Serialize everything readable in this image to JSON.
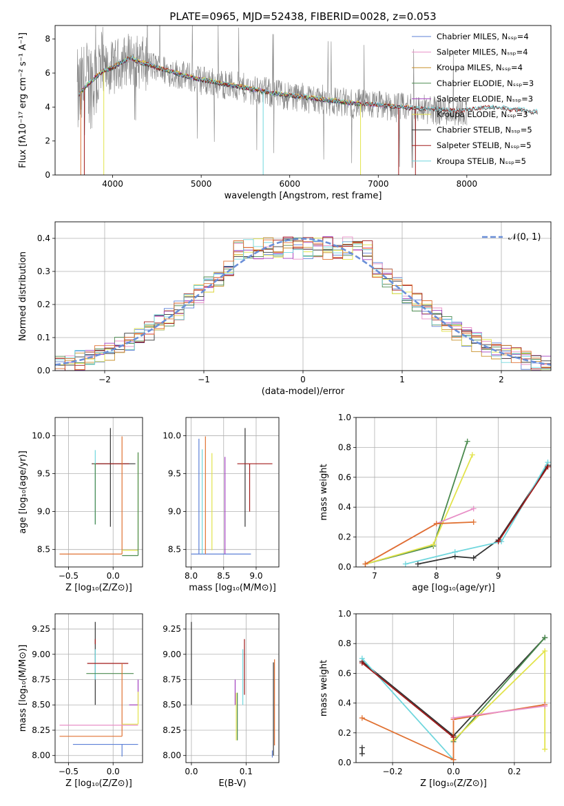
{
  "colors": {
    "chabrier_miles": "#5b7fd6",
    "salpeter_miles": "#e88fc7",
    "kroupa_miles": "#c8902a",
    "chabrier_elodie": "#4a8a4e",
    "salpeter_elodie": "#a23fbf",
    "kroupa_elodie": "#e2e34a",
    "chabrier_stelib": "#333333",
    "salpeter_stelib": "#a01818",
    "kroupa_stelib": "#6fd6dd",
    "data": "#808080",
    "normal": "#6a8fd8",
    "orange": "#e07030"
  },
  "chart_data": [
    {
      "id": "spectrum",
      "type": "line",
      "title": "PLATE=0965, MJD=52438, FIBERID=0028, z=0.053",
      "xlabel": "wavelength [Angstrom, rest frame]",
      "ylabel": "Flux [fλ10⁻¹⁷ erg cm⁻² s⁻¹ A⁻¹]",
      "xlim": [
        3350,
        8950
      ],
      "ylim": [
        0,
        8.8
      ],
      "xticks": [
        "4000",
        "5000",
        "6000",
        "7000",
        "8000"
      ],
      "yticks": [
        "0",
        "2",
        "4",
        "6",
        "8"
      ],
      "legend_position": "top-right",
      "grid": false,
      "legend": [
        {
          "label": "Chabrier MILES, Nₛₛₚ=4",
          "color": "chabrier_miles"
        },
        {
          "label": "Salpeter MILES, Nₛₛₚ=4",
          "color": "salpeter_miles"
        },
        {
          "label": "Kroupa MILES, Nₛₛₚ=4",
          "color": "kroupa_miles"
        },
        {
          "label": "Chabrier ELODIE, Nₛₛₚ=3",
          "color": "chabrier_elodie"
        },
        {
          "label": "Salpeter ELODIE, Nₛₛₚ=3",
          "color": "salpeter_elodie"
        },
        {
          "label": "Kroupa ELODIE, Nₛₛₚ=3",
          "color": "kroupa_elodie"
        },
        {
          "label": "Chabrier STELIB, Nₛₛₚ=5",
          "color": "chabrier_stelib"
        },
        {
          "label": "Salpeter STELIB, Nₛₛₚ=5",
          "color": "salpeter_stelib"
        },
        {
          "label": "Kroupa STELIB, Nₛₛₚ=5",
          "color": "kroupa_stelib"
        }
      ],
      "continuum": [
        [
          3600,
          4.6
        ],
        [
          3700,
          5.2
        ],
        [
          3800,
          5.7
        ],
        [
          3900,
          6.1
        ],
        [
          4000,
          6.3
        ],
        [
          4100,
          6.6
        ],
        [
          4200,
          6.9
        ],
        [
          4300,
          6.6
        ],
        [
          4400,
          6.5
        ],
        [
          4500,
          6.3
        ],
        [
          4700,
          6.0
        ],
        [
          4900,
          5.7
        ],
        [
          5100,
          5.5
        ],
        [
          5300,
          5.3
        ],
        [
          5500,
          5.1
        ],
        [
          5800,
          4.8
        ],
        [
          6100,
          4.6
        ],
        [
          6400,
          4.4
        ],
        [
          6700,
          4.2
        ],
        [
          7000,
          4.1
        ],
        [
          7300,
          3.95
        ],
        [
          7600,
          3.85
        ],
        [
          7900,
          3.75
        ],
        [
          8200,
          3.95
        ],
        [
          8400,
          3.95
        ],
        [
          8500,
          3.8
        ],
        [
          8600,
          3.85
        ],
        [
          8700,
          3.7
        ]
      ],
      "data_xrange": [
        3600,
        8000
      ],
      "model_xrange": [
        3600,
        8800
      ]
    },
    {
      "id": "residuals",
      "type": "step",
      "xlabel": "(data-model)/error",
      "ylabel": "Normed distribution",
      "xlim": [
        -2.5,
        2.5
      ],
      "ylim": [
        0,
        0.45
      ],
      "xticks": [
        "−2",
        "−1",
        "0",
        "1",
        "2"
      ],
      "yticks": [
        "0.0",
        "0.1",
        "0.2",
        "0.3",
        "0.4"
      ],
      "grid": true,
      "legend": [
        {
          "label": "𝒩(0, 1)",
          "style": "dashed",
          "color": "normal"
        }
      ],
      "legend_position": "top-right"
    },
    {
      "id": "age-vs-Z",
      "type": "scatter",
      "xlabel": "Z [log₁₀(Z/Z⊙)]",
      "ylabel": "age  [log₁₀(age/yr)]",
      "xlim": [
        -0.65,
        0.33
      ],
      "ylim": [
        8.27,
        10.24
      ],
      "xticks": [
        "−0.5",
        "0.0"
      ],
      "yticks": [
        "8.5",
        "9.0",
        "9.5",
        "10.0"
      ],
      "grid": true,
      "errorbars": [
        {
          "c": "chabrier_stelib",
          "x": -0.03,
          "xerr": [
            0.21,
            0.28
          ],
          "y": 9.63,
          "yerr": [
            0.83,
            0.47
          ]
        },
        {
          "c": "salpeter_stelib",
          "x": -0.04,
          "xerr": [
            0.19,
            0.22
          ],
          "y": 9.63,
          "yerr": [
            0.0,
            0.0
          ]
        },
        {
          "c": "kroupa_stelib",
          "x": -0.2,
          "xerr": [
            0.02,
            0.0
          ],
          "y": 9.63,
          "yerr": [
            0.8,
            0.18
          ]
        },
        {
          "c": "chabrier_elodie",
          "x": -0.2,
          "xerr": [
            0.02,
            0.0
          ],
          "y": 9.63,
          "yerr": [
            0.8,
            0.0
          ]
        },
        {
          "c": "orange",
          "x": 0.1,
          "xerr": [
            0.7,
            0.0
          ],
          "y": 8.44,
          "yerr": [
            0.0,
            1.55
          ]
        },
        {
          "c": "kroupa_elodie",
          "x": 0.28,
          "xerr": [
            0.18,
            0.0
          ],
          "y": 8.49,
          "yerr": [
            0.0,
            1.28
          ]
        },
        {
          "c": "chabrier_elodie",
          "x": 0.28,
          "xerr": [
            0.18,
            0.0
          ],
          "y": 8.42,
          "yerr": [
            0.0,
            1.36
          ]
        }
      ]
    },
    {
      "id": "age-vs-mass",
      "type": "scatter",
      "xlabel": "mass [log₁₀(M/M⊙)]",
      "ylabel": "",
      "xlim": [
        7.92,
        9.35
      ],
      "ylim": [
        8.27,
        10.24
      ],
      "xticks": [
        "8.0",
        "8.5",
        "9.0"
      ],
      "yticks": [
        "8.5",
        "9.0",
        "9.5",
        "10.0"
      ],
      "grid": true,
      "errorbars": [
        {
          "c": "chabrier_miles",
          "x": 8.12,
          "xerr": [
            0.12,
            0.8
          ],
          "y": 8.44,
          "yerr": [
            0.0,
            1.52
          ]
        },
        {
          "c": "kroupa_stelib",
          "x": 8.17,
          "xerr": [
            0.0,
            0.0
          ],
          "y": 8.44,
          "yerr": [
            0.0,
            1.38
          ]
        },
        {
          "c": "orange",
          "x": 8.22,
          "xerr": [
            0.0,
            0.0
          ],
          "y": 8.44,
          "yerr": [
            0.0,
            1.55
          ]
        },
        {
          "c": "kroupa_elodie",
          "x": 8.32,
          "xerr": [
            0.0,
            0.0
          ],
          "y": 8.49,
          "yerr": [
            0.0,
            1.28
          ]
        },
        {
          "c": "salpeter_elodie",
          "x": 8.52,
          "xerr": [
            0.0,
            0.0
          ],
          "y": 8.44,
          "yerr": [
            0.0,
            1.28
          ]
        },
        {
          "c": "chabrier_stelib",
          "x": 8.83,
          "xerr": [
            0.0,
            0.0
          ],
          "y": 9.63,
          "yerr": [
            0.83,
            0.47
          ]
        },
        {
          "c": "salpeter_stelib",
          "x": 8.9,
          "xerr": [
            0.19,
            0.35
          ],
          "y": 9.63,
          "yerr": [
            0.63,
            0.0
          ]
        }
      ]
    },
    {
      "id": "massweight-vs-age",
      "type": "line",
      "xlabel": "age  [log₁₀(age/yr)]",
      "ylabel": "mass weight",
      "xlim": [
        6.7,
        9.85
      ],
      "ylim": [
        0,
        1.0
      ],
      "xticks": [
        "7",
        "8",
        "9"
      ],
      "yticks": [
        "0.0",
        "0.2",
        "0.4",
        "0.6",
        "0.8",
        "1.0"
      ],
      "grid": true,
      "series": [
        {
          "c": "chabrier_elodie",
          "x": [
            6.85,
            7.95,
            8.5
          ],
          "y": [
            0.02,
            0.14,
            0.84
          ]
        },
        {
          "c": "kroupa_elodie",
          "x": [
            6.85,
            7.95,
            8.58
          ],
          "y": [
            0.02,
            0.15,
            0.75
          ]
        },
        {
          "c": "salpeter_miles",
          "x": [
            6.85,
            8.0,
            8.6
          ],
          "y": [
            0.02,
            0.29,
            0.39
          ]
        },
        {
          "c": "orange",
          "x": [
            6.85,
            8.0,
            8.6
          ],
          "y": [
            0.02,
            0.29,
            0.3
          ]
        },
        {
          "c": "chabrier_stelib",
          "x": [
            7.7,
            8.3,
            8.6,
            9.0,
            9.8
          ],
          "y": [
            0.02,
            0.07,
            0.06,
            0.18,
            0.68
          ]
        },
        {
          "c": "kroupa_stelib",
          "x": [
            7.5,
            8.3,
            9.05,
            9.8
          ],
          "y": [
            0.02,
            0.1,
            0.17,
            0.7
          ]
        },
        {
          "c": "salpeter_stelib",
          "x": [
            9.0,
            9.8
          ],
          "y": [
            0.17,
            0.67
          ]
        }
      ]
    },
    {
      "id": "mass-vs-Z",
      "type": "scatter",
      "xlabel": "Z [log₁₀(Z/Z⊙)]",
      "ylabel": "mass [log₁₀(M/M⊙)]",
      "xlim": [
        -0.65,
        0.33
      ],
      "ylim": [
        7.93,
        9.4
      ],
      "xticks": [
        "−0.5",
        "0.0"
      ],
      "yticks": [
        "8.00",
        "8.25",
        "8.50",
        "8.75",
        "9.00",
        "9.25"
      ],
      "grid": true,
      "errorbars": [
        {
          "c": "chabrier_stelib",
          "x": -0.2,
          "xerr": [
            0.0,
            0.0
          ],
          "y": 8.9,
          "yerr": [
            0.4,
            0.42
          ]
        },
        {
          "c": "salpeter_stelib",
          "x": -0.2,
          "xerr": [
            0.0,
            0.0
          ],
          "y": 9.1,
          "yerr": [
            0.0,
            0.05
          ]
        },
        {
          "c": "kroupa_stelib",
          "x": -0.2,
          "xerr": [
            0.0,
            0.0
          ],
          "y": 8.85,
          "yerr": [
            0.1,
            0.2
          ]
        },
        {
          "c": "salpeter_stelib",
          "x": -0.06,
          "xerr": [
            0.23,
            0.23
          ],
          "y": 8.91,
          "yerr": [
            0.0,
            0.0
          ]
        },
        {
          "c": "chabrier_elodie",
          "x": -0.03,
          "xerr": [
            0.27,
            0.26
          ],
          "y": 8.81,
          "yerr": [
            0.0,
            0.0
          ]
        },
        {
          "c": "orange",
          "x": 0.1,
          "xerr": [
            0.7,
            0.0
          ],
          "y": 8.19,
          "yerr": [
            0.0,
            0.72
          ]
        },
        {
          "c": "salpeter_miles",
          "x": 0.1,
          "xerr": [
            0.7,
            0.18
          ],
          "y": 8.3,
          "yerr": [
            0.0,
            0.0
          ]
        },
        {
          "c": "chabrier_miles",
          "x": 0.1,
          "xerr": [
            0.55,
            0.18
          ],
          "y": 8.11,
          "yerr": [
            0.12,
            0.0
          ]
        },
        {
          "c": "salpeter_elodie",
          "x": 0.28,
          "xerr": [
            0.1,
            0.0
          ],
          "y": 8.5,
          "yerr": [
            0.0,
            0.25
          ]
        },
        {
          "c": "kroupa_elodie",
          "x": 0.28,
          "xerr": [
            0.18,
            0.0
          ],
          "y": 8.31,
          "yerr": [
            0.0,
            0.32
          ]
        }
      ]
    },
    {
      "id": "mass-vs-EBV",
      "type": "scatter",
      "xlabel": "E(B-V)",
      "ylabel": "",
      "xlim": [
        -0.01,
        0.16
      ],
      "ylim": [
        7.93,
        9.4
      ],
      "xticks": [
        "0.0",
        "0.1"
      ],
      "yticks": [
        "8.00",
        "8.25",
        "8.50",
        "8.75",
        "9.00",
        "9.25"
      ],
      "grid": true,
      "errorbars": [
        {
          "c": "chabrier_stelib",
          "x": 0.0,
          "xerr": [
            0.0,
            0.0
          ],
          "y": 8.9,
          "yerr": [
            0.4,
            0.42
          ]
        },
        {
          "c": "salpeter_elodie",
          "x": 0.08,
          "xerr": [
            0.0,
            0.0
          ],
          "y": 8.5,
          "yerr": [
            0.0,
            0.25
          ]
        },
        {
          "c": "kroupa_elodie",
          "x": 0.082,
          "xerr": [
            0.0,
            0.0
          ],
          "y": 8.3,
          "yerr": [
            0.15,
            0.32
          ]
        },
        {
          "c": "chabrier_elodie",
          "x": 0.084,
          "xerr": [
            0.0,
            0.0
          ],
          "y": 8.4,
          "yerr": [
            0.25,
            0.22
          ]
        },
        {
          "c": "kroupa_stelib",
          "x": 0.094,
          "xerr": [
            0.0,
            0.0
          ],
          "y": 8.85,
          "yerr": [
            0.35,
            0.2
          ]
        },
        {
          "c": "salpeter_stelib",
          "x": 0.097,
          "xerr": [
            0.0,
            0.0
          ],
          "y": 8.9,
          "yerr": [
            0.3,
            0.25
          ]
        },
        {
          "c": "chabrier_stelib",
          "x": 0.15,
          "xerr": [
            0.0,
            0.0
          ],
          "y": 8.4,
          "yerr": [
            0.4,
            0.52
          ]
        },
        {
          "c": "orange",
          "x": 0.152,
          "xerr": [
            0.0,
            0.0
          ],
          "y": 8.55,
          "yerr": [
            0.45,
            0.4
          ]
        },
        {
          "c": "chabrier_miles",
          "x": 0.148,
          "xerr": [
            0.0,
            0.0
          ],
          "y": 8.05,
          "yerr": [
            0.07,
            0.0
          ]
        }
      ]
    },
    {
      "id": "massweight-vs-Z",
      "type": "line",
      "xlabel": "Z [log₁₀(Z/Z⊙)]",
      "ylabel": "mass weight",
      "xlim": [
        -0.32,
        0.32
      ],
      "ylim": [
        0,
        1.0
      ],
      "xticks": [
        "−0.2",
        "0.0",
        "0.2"
      ],
      "yticks": [
        "0.0",
        "0.2",
        "0.4",
        "0.6",
        "0.8",
        "1.0"
      ],
      "grid": true,
      "series": [
        {
          "c": "chabrier_stelib",
          "x": [
            -0.3,
            0.0,
            0.3
          ],
          "y": [
            0.68,
            0.18,
            0.84
          ]
        },
        {
          "c": "kroupa_stelib",
          "x": [
            -0.3,
            0.0
          ],
          "y": [
            0.7,
            0.02
          ]
        },
        {
          "c": "chabrier_elodie",
          "x": [
            0.0,
            0.3
          ],
          "y": [
            0.14,
            0.84
          ]
        },
        {
          "c": "kroupa_elodie",
          "x": [
            0.0,
            0.3,
            0.3
          ],
          "y": [
            0.15,
            0.75,
            0.09
          ]
        },
        {
          "c": "orange",
          "x": [
            -0.3,
            0.0,
            0.0,
            0.3
          ],
          "y": [
            0.3,
            0.02,
            0.29,
            0.39
          ]
        },
        {
          "c": "salpeter_miles",
          "x": [
            0.0,
            0.3
          ],
          "y": [
            0.3,
            0.38
          ]
        },
        {
          "c": "salpeter_stelib",
          "x": [
            -0.3,
            0.0
          ],
          "y": [
            0.67,
            0.17
          ]
        },
        {
          "c": "chabrier_stelib",
          "x": [
            -0.3,
            -0.3
          ],
          "y": [
            0.06,
            0.1
          ]
        }
      ]
    }
  ]
}
